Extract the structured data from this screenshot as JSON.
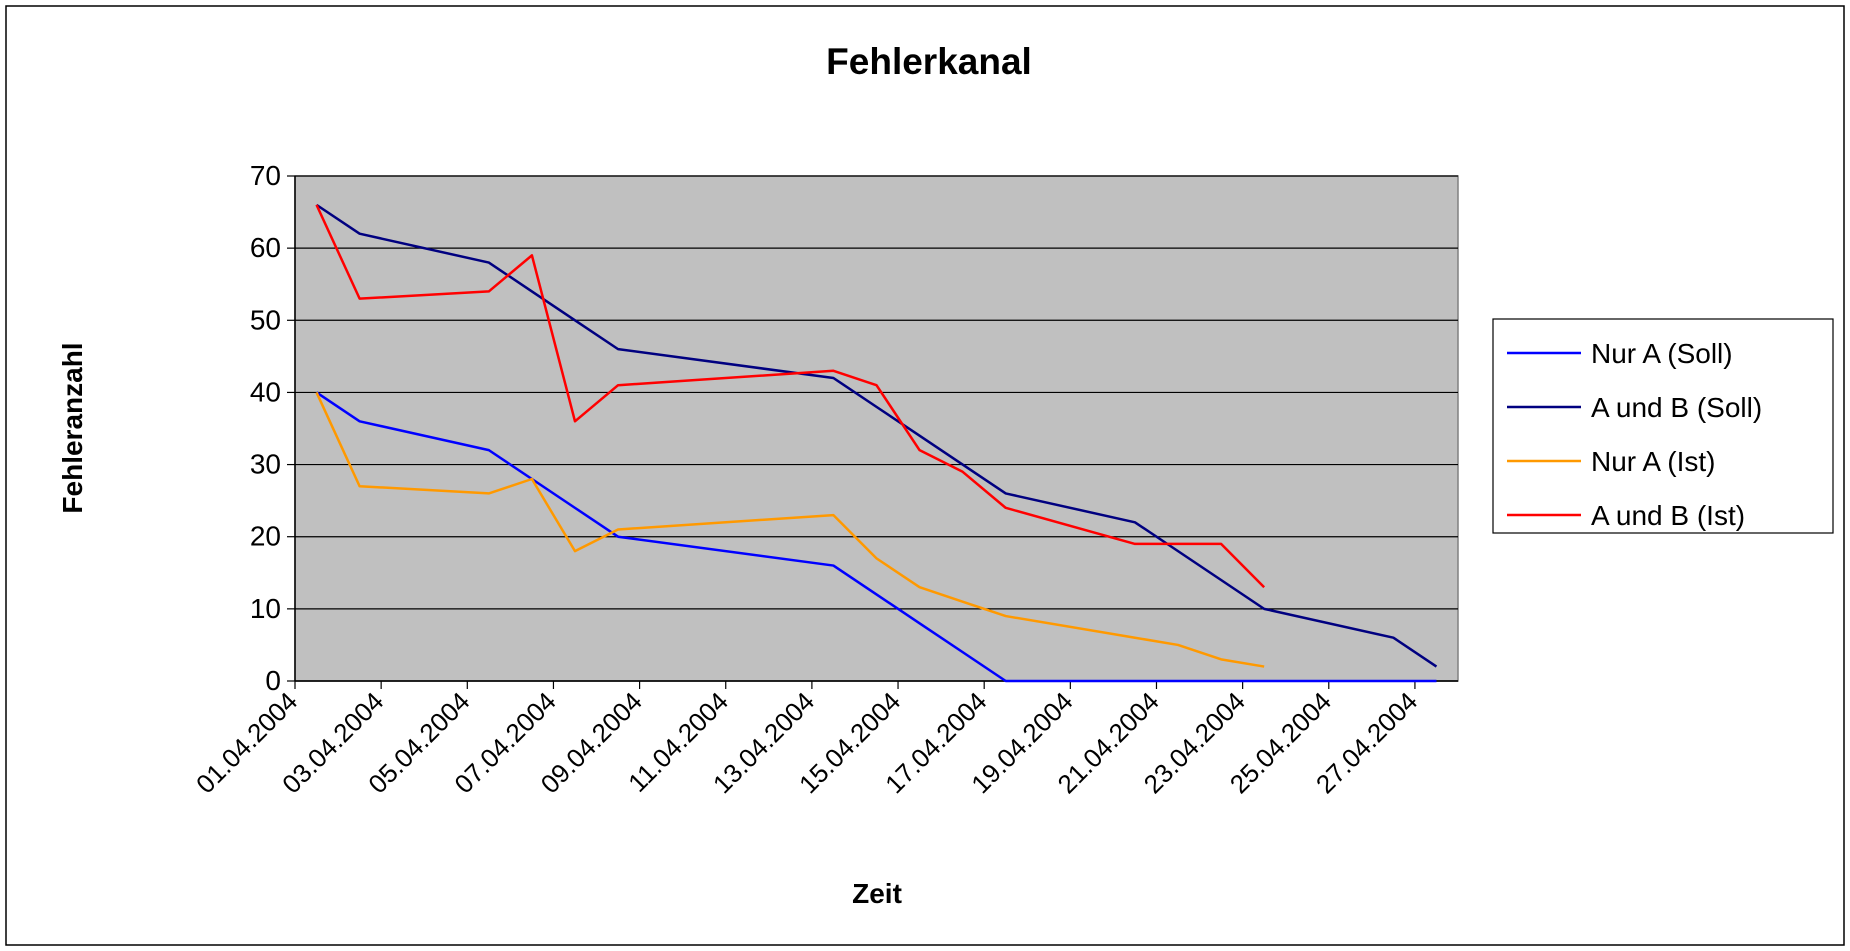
{
  "chart_data": {
    "type": "line",
    "title": "Fehlerkanal",
    "x_label": "Zeit",
    "y_label": "Fehleranzahl",
    "x": [
      "01.04.2004",
      "02.04.2004",
      "05.04.2004",
      "06.04.2004",
      "07.04.2004",
      "08.04.2004",
      "13.04.2004",
      "14.04.2004",
      "15.04.2004",
      "16.04.2004",
      "17.04.2004",
      "20.04.2004",
      "21.04.2004",
      "22.04.2004",
      "23.04.2004",
      "26.04.2004",
      "27.04.2004"
    ],
    "series": [
      {
        "name": "Nur A (Soll)",
        "color": "#0000ff",
        "values": [
          40,
          36,
          32,
          28,
          24,
          20,
          16,
          12,
          8,
          4,
          0,
          0,
          0,
          0,
          0,
          0,
          0
        ]
      },
      {
        "name": "A und B (Soll)",
        "color": "#000080",
        "values": [
          66,
          62,
          58,
          54,
          50,
          46,
          42,
          38,
          34,
          30,
          26,
          22,
          18,
          14,
          10,
          6,
          2
        ]
      },
      {
        "name": "Nur A (Ist)",
        "color": "#ff9900",
        "values": [
          40,
          27,
          26,
          28,
          18,
          21,
          23,
          17,
          13,
          11,
          9,
          6,
          5,
          3,
          2,
          null,
          null
        ]
      },
      {
        "name": "A und B (Ist)",
        "color": "#ff0000",
        "values": [
          66,
          53,
          54,
          59,
          36,
          41,
          43,
          41,
          32,
          29,
          24,
          19,
          19,
          19,
          13,
          null,
          null
        ]
      }
    ],
    "xlim": [
      "01.04.2004",
      "27.04.2004"
    ],
    "xticks": [
      "01.04.2004",
      "03.04.2004",
      "05.04.2004",
      "07.04.2004",
      "09.04.2004",
      "11.04.2004",
      "13.04.2004",
      "15.04.2004",
      "17.04.2004",
      "19.04.2004",
      "21.04.2004",
      "23.04.2004",
      "25.04.2004",
      "27.04.2004"
    ],
    "ylim": [
      0,
      70
    ],
    "yticks": [
      0,
      10,
      20,
      30,
      40,
      50,
      60,
      70
    ],
    "grid": true,
    "plot_background": "#c0c0c0",
    "legend": "right"
  }
}
